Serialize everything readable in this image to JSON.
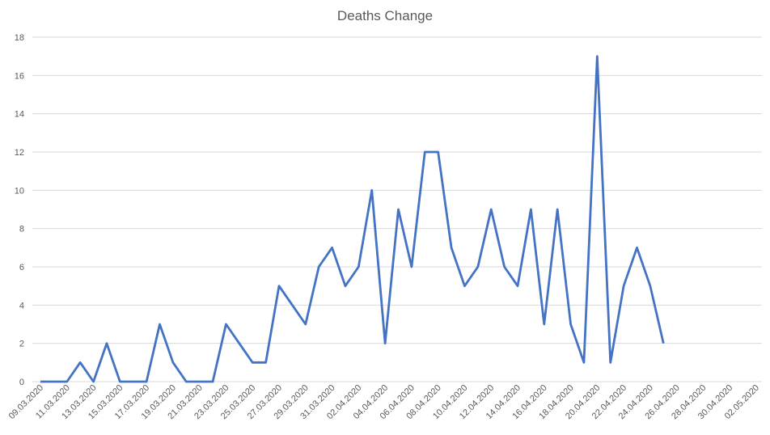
{
  "chart_data": {
    "type": "line",
    "title": "Deaths Change",
    "categories": [
      "09.03.2020",
      null,
      "11.03.2020",
      null,
      "13.03.2020",
      null,
      "15.03.2020",
      null,
      "17.03.2020",
      null,
      "19.03.2020",
      null,
      "21.03.2020",
      null,
      "23.03.2020",
      null,
      "25.03.2020",
      null,
      "27.03.2020",
      null,
      "29.03.2020",
      null,
      "31.03.2020",
      null,
      "02.04.2020",
      null,
      "04.04.2020",
      null,
      "06.04.2020",
      null,
      "08.04.2020",
      null,
      "10.04.2020",
      null,
      "12.04.2020",
      null,
      "14.04.2020",
      null,
      "16.04.2020",
      null,
      "18.04.2020",
      null,
      "20.04.2020",
      null,
      "22.04.2020",
      null,
      "24.04.2020",
      null,
      "26.04.2020",
      null,
      "28.04.2020",
      null,
      "30.04.2020",
      null,
      "02.05.2020"
    ],
    "series": [
      {
        "color": "#4472c4",
        "values": [
          0,
          0,
          0,
          1,
          0,
          2,
          0,
          0,
          0,
          3,
          1,
          0,
          0,
          0,
          3,
          2,
          1,
          1,
          5,
          4,
          3,
          6,
          7,
          5,
          6,
          10,
          2,
          9,
          6,
          12,
          12,
          7,
          5,
          6,
          9,
          6,
          5,
          9,
          3,
          9,
          3,
          1,
          17,
          1,
          5,
          7,
          5,
          2,
          null,
          null,
          null,
          null,
          null,
          null,
          null
        ]
      }
    ],
    "ylim": [
      0,
      18
    ],
    "yticks": [
      0,
      2,
      4,
      6,
      8,
      10,
      12,
      14,
      16,
      18
    ],
    "grid": true
  }
}
